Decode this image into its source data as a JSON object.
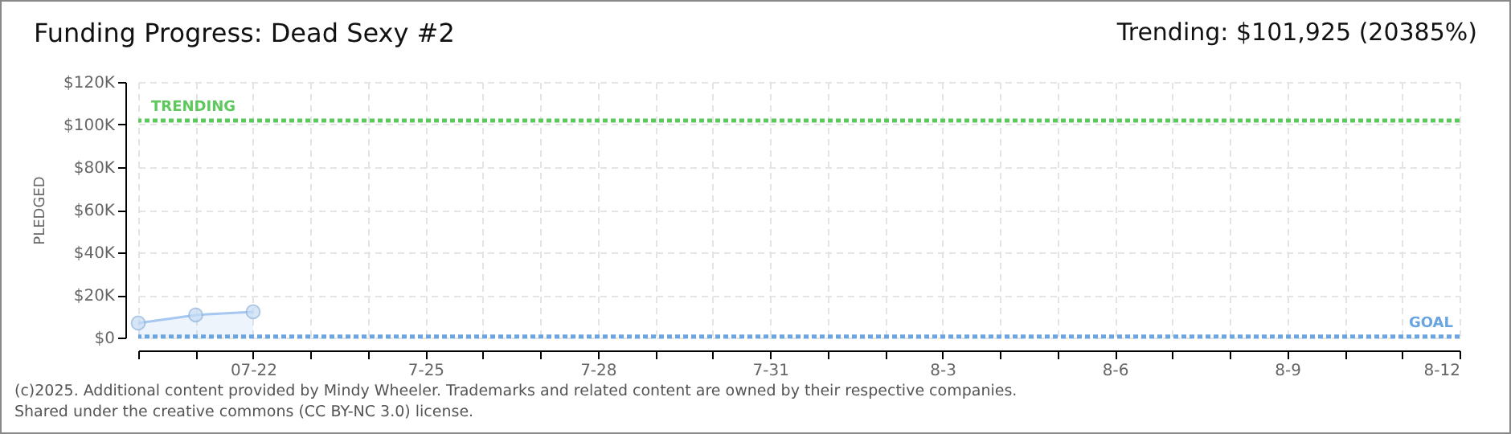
{
  "chart_data": {
    "type": "area",
    "title": "Funding Progress: Dead Sexy #2",
    "ylabel": "PLEDGED",
    "annotations": [
      "Trending:  $101,925 (20385%)",
      "(c)2025. Additional content provided by Mindy Wheeler. Trademarks and related content are owned by their respective companies.",
      "Shared under the creative commons (CC BY-NC 3.0) license."
    ],
    "x": [
      "2025-07-20",
      "2025-07-21",
      "2025-07-22"
    ],
    "series": [
      {
        "color": "#a6c8f0",
        "values": [
          6800,
          10600,
          12100
        ]
      }
    ],
    "xlim": [
      "2025-07-20",
      "2025-08-12"
    ],
    "xticks": [
      {
        "value": "2025-07-20",
        "label": null
      },
      {
        "value": "2025-07-21",
        "label": null
      },
      {
        "value": "2025-07-22",
        "label": "07-22"
      },
      {
        "value": "2025-07-23",
        "label": null
      },
      {
        "value": "2025-07-24",
        "label": null
      },
      {
        "value": "2025-07-25",
        "label": "7-25"
      },
      {
        "value": "2025-07-26",
        "label": null
      },
      {
        "value": "2025-07-27",
        "label": null
      },
      {
        "value": "2025-07-28",
        "label": "7-28"
      },
      {
        "value": "2025-07-29",
        "label": null
      },
      {
        "value": "2025-07-30",
        "label": null
      },
      {
        "value": "2025-07-31",
        "label": "7-31"
      },
      {
        "value": "2025-08-01",
        "label": null
      },
      {
        "value": "2025-08-02",
        "label": null
      },
      {
        "value": "2025-08-03",
        "label": "8-3"
      },
      {
        "value": "2025-08-04",
        "label": null
      },
      {
        "value": "2025-08-05",
        "label": null
      },
      {
        "value": "2025-08-06",
        "label": "8-6"
      },
      {
        "value": "2025-08-07",
        "label": null
      },
      {
        "value": "2025-08-08",
        "label": null
      },
      {
        "value": "2025-08-09",
        "label": "8-9"
      },
      {
        "value": "2025-08-10",
        "label": null
      },
      {
        "value": "2025-08-11",
        "label": null
      },
      {
        "value": "2025-08-12",
        "label": "8-12"
      }
    ],
    "ylim": [
      0,
      120000
    ],
    "yticks": [
      {
        "value": 0,
        "label": "$0"
      },
      {
        "value": 20000,
        "label": "$20K"
      },
      {
        "value": 40000,
        "label": "$40K"
      },
      {
        "value": 60000,
        "label": "$60K"
      },
      {
        "value": 80000,
        "label": "$80K"
      },
      {
        "value": 100000,
        "label": "$100K"
      },
      {
        "value": 120000,
        "label": "$120K"
      }
    ],
    "ref_lines": [
      {
        "axis": "y",
        "value": 101925,
        "label": "TRENDING",
        "color": "#5dc95d",
        "line_style": "dotted"
      },
      {
        "axis": "y",
        "value": 500,
        "label": "GOAL",
        "color": "#6aa5e0",
        "line_style": "dotted"
      }
    ],
    "grid": true,
    "marker": "circle",
    "line_style": "solid"
  }
}
